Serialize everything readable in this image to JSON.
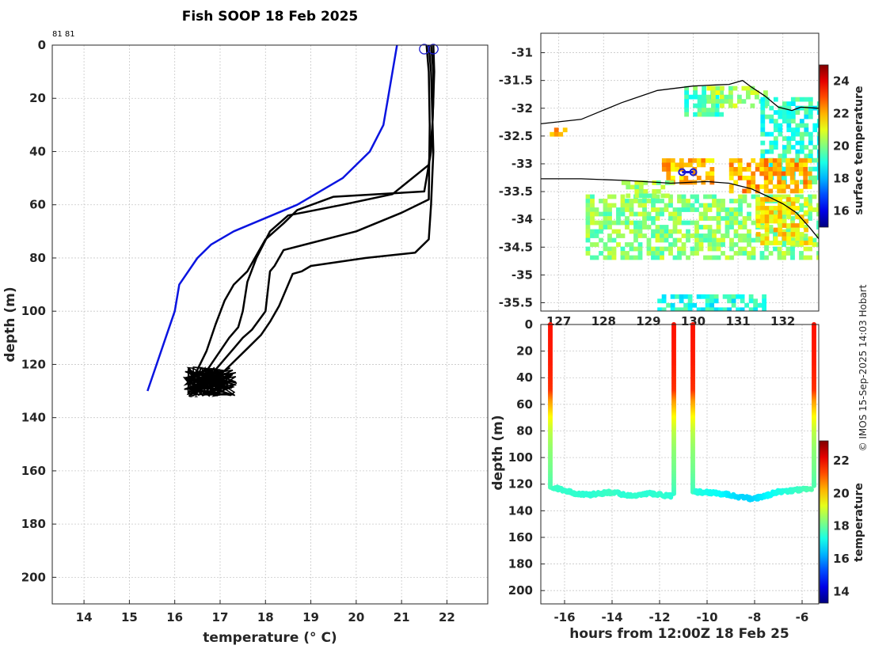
{
  "title": "Fish SOOP 18 Feb 2025",
  "credit": "© IMOS 15-Sep-2025 14:03 Hobart",
  "colors": {
    "climatology": "#0a14e0",
    "profiles": "#000000",
    "marker": "#1a1ad0"
  },
  "chart_data": [
    {
      "id": "profile",
      "type": "line",
      "xlabel": "temperature (° C)",
      "ylabel": "depth (m)",
      "xlim": [
        13.3,
        22.9
      ],
      "ylim": [
        210,
        0
      ],
      "xticks": [
        "14",
        "15",
        "16",
        "17",
        "18",
        "19",
        "20",
        "21",
        "22"
      ],
      "yticks": [
        "0",
        "20",
        "40",
        "60",
        "80",
        "100",
        "120",
        "140",
        "160",
        "180",
        "200"
      ],
      "grid": true,
      "top_annotation": "81 81",
      "bottom_annotations": [
        "81",
        "81"
      ],
      "series": [
        {
          "style": "blue",
          "x": [
            20.9,
            20.8,
            20.7,
            20.6,
            20.3,
            19.7,
            18.7,
            17.3,
            16.8,
            16.5,
            16.1,
            16.0,
            15.8,
            15.6,
            15.4
          ],
          "y": [
            0,
            10,
            20,
            30,
            40,
            50,
            60,
            70,
            75,
            80,
            90,
            100,
            110,
            120,
            130
          ]
        },
        {
          "style": "black",
          "x": [
            21.65,
            21.7,
            21.7,
            21.68,
            21.65,
            21.5,
            19.5,
            18.7,
            18.4,
            18.0,
            17.8,
            17.6,
            17.3,
            17.1,
            16.9,
            16.7,
            16.5,
            16.3
          ],
          "y": [
            0,
            10,
            20,
            30,
            40,
            55,
            57,
            62,
            67,
            73,
            79,
            85,
            90,
            96,
            105,
            115,
            122,
            128
          ]
        },
        {
          "style": "black",
          "x": [
            21.7,
            21.72,
            21.7,
            21.68,
            21.6,
            20.8,
            19.7,
            18.5,
            18.1,
            17.8,
            17.6,
            17.5,
            17.4,
            17.2,
            17.0,
            16.8,
            16.6,
            16.4
          ],
          "y": [
            0,
            10,
            20,
            30,
            45,
            56,
            60,
            64,
            70,
            80,
            89,
            100,
            106,
            110,
            115,
            120,
            125,
            130
          ]
        },
        {
          "style": "black",
          "x": [
            21.55,
            21.6,
            21.62,
            21.6,
            21.0,
            20.0,
            18.4,
            18.2,
            18.1,
            18.0,
            17.7,
            17.5,
            17.3,
            17.1,
            16.9,
            16.7
          ],
          "y": [
            0,
            10,
            30,
            58,
            63,
            70,
            77,
            83,
            85,
            100,
            107,
            110,
            114,
            118,
            122,
            127
          ]
        },
        {
          "style": "black",
          "x": [
            21.6,
            21.65,
            21.7,
            21.65,
            21.6,
            21.3,
            20.2,
            19.0,
            18.8,
            18.6,
            18.5,
            18.3,
            18.1,
            17.9,
            17.6,
            17.3,
            17.0,
            16.8
          ],
          "y": [
            0,
            10,
            40,
            60,
            73,
            78,
            80,
            83,
            85,
            86,
            90,
            98,
            104,
            109,
            114,
            119,
            124,
            129
          ]
        }
      ],
      "surface_markers": [
        {
          "x": 21.5,
          "y": 1.5
        },
        {
          "x": 21.7,
          "y": 1.5
        }
      ]
    },
    {
      "id": "map",
      "type": "heatmap",
      "ylim": [
        -35.65,
        -30.65
      ],
      "xlim": [
        126.6,
        132.8
      ],
      "xticks": [
        "127",
        "128",
        "129",
        "130",
        "131",
        "132"
      ],
      "yticks": [
        "-31",
        "-31.5",
        "-32",
        "-32.5",
        "-33",
        "-33.5",
        "-34",
        "-34.5",
        "-35",
        "-35.5"
      ],
      "colorbar": {
        "label": "surface temperature",
        "ticks": [
          "16",
          "18",
          "20",
          "22",
          "24"
        ],
        "range": [
          15,
          25
        ]
      },
      "coastline": {
        "lon": [
          126.6,
          127.5,
          128.4,
          129.2,
          130.0,
          130.5,
          130.8,
          131.1,
          131.3,
          131.6,
          131.9,
          132.2,
          132.4,
          132.8
        ],
        "lat": [
          -32.28,
          -32.2,
          -31.9,
          -31.68,
          -31.6,
          -31.58,
          -31.57,
          -31.5,
          -31.62,
          -31.78,
          -31.98,
          -32.04,
          -31.98,
          -32.0
        ]
      },
      "isobath": {
        "lon": [
          126.6,
          127.5,
          128.5,
          129.5,
          130.3,
          130.8,
          131.3,
          131.7,
          132.0,
          132.3,
          132.6,
          132.8
        ],
        "lat": [
          -33.27,
          -33.27,
          -33.3,
          -33.35,
          -33.32,
          -33.35,
          -33.45,
          -33.6,
          -33.72,
          -33.88,
          -34.15,
          -34.35
        ]
      },
      "track": {
        "lon": [
          129.75,
          130.0
        ],
        "lat": [
          -33.15,
          -33.15
        ]
      },
      "patches": [
        {
          "lon": [
            129.8,
            130.6
          ],
          "lat": [
            -32.1,
            -31.6
          ],
          "temp": 19.6
        },
        {
          "lon": [
            130.3,
            131.6
          ],
          "lat": [
            -31.95,
            -31.6
          ],
          "temp": 20.4
        },
        {
          "lon": [
            131.5,
            132.8
          ],
          "lat": [
            -33.3,
            -31.8
          ],
          "temp": 19.2
        },
        {
          "lon": [
            129.3,
            130.4
          ],
          "lat": [
            -33.3,
            -32.9
          ],
          "temp": 21.9
        },
        {
          "lon": [
            130.8,
            132.6
          ],
          "lat": [
            -33.5,
            -32.9
          ],
          "temp": 22.1
        },
        {
          "lon": [
            127.6,
            132.8
          ],
          "lat": [
            -34.7,
            -33.55
          ],
          "temp": 20.1
        },
        {
          "lon": [
            131.4,
            132.6
          ],
          "lat": [
            -34.4,
            -33.6
          ],
          "temp": 21.5
        },
        {
          "lon": [
            128.4,
            129.5
          ],
          "lat": [
            -33.6,
            -33.3
          ],
          "temp": 20.3
        },
        {
          "lon": [
            129.2,
            131.6
          ],
          "lat": [
            -35.65,
            -35.35
          ],
          "temp": 19.0
        },
        {
          "lon": [
            126.8,
            127.1
          ],
          "lat": [
            -32.5,
            -32.35
          ],
          "temp": 22.5
        }
      ]
    },
    {
      "id": "section",
      "type": "scatter",
      "xlabel": "hours from 12:00Z 18 Feb 25",
      "ylabel": "depth (m)",
      "xlim": [
        -17.0,
        -5.3
      ],
      "ylim": [
        210,
        0
      ],
      "xticks": [
        "-16",
        "-14",
        "-12",
        "-10",
        "-8",
        "-6"
      ],
      "yticks": [
        "0",
        "20",
        "40",
        "60",
        "80",
        "100",
        "120",
        "140",
        "160",
        "180",
        "200"
      ],
      "colorbar": {
        "label": "temperature",
        "ticks": [
          "14",
          "16",
          "18",
          "20",
          "22"
        ],
        "range": [
          13.3,
          23.2
        ]
      },
      "casts": [
        {
          "t": -16.6,
          "bottom": 123
        },
        {
          "t": -11.4,
          "bottom": 128
        },
        {
          "t": -10.6,
          "bottom": 127
        },
        {
          "t": -5.5,
          "bottom": 122
        }
      ],
      "profile_temps": {
        "depth": [
          0,
          30,
          50,
          58,
          70,
          82,
          95,
          110,
          125,
          130
        ],
        "temp": [
          21.8,
          21.7,
          21.5,
          20.5,
          19.5,
          18.8,
          18.4,
          18.1,
          17.7,
          17.4
        ]
      },
      "tows": [
        {
          "t0": -16.5,
          "t1": -11.5,
          "depth": [
            122,
            125,
            127,
            128,
            127,
            126,
            128,
            129,
            127,
            128,
            129
          ],
          "temp": [
            17.6,
            17.5,
            17.5,
            17.4,
            17.5,
            17.6,
            17.4,
            17.5,
            17.4,
            17.5,
            17.4
          ]
        },
        {
          "t0": -10.5,
          "t1": -5.6,
          "depth": [
            126,
            126,
            127,
            128,
            130,
            131,
            129,
            126,
            125,
            124,
            123
          ],
          "temp": [
            17.4,
            17.2,
            17.1,
            16.8,
            16.6,
            16.6,
            16.9,
            17.2,
            17.4,
            17.6,
            17.8
          ]
        }
      ]
    }
  ]
}
